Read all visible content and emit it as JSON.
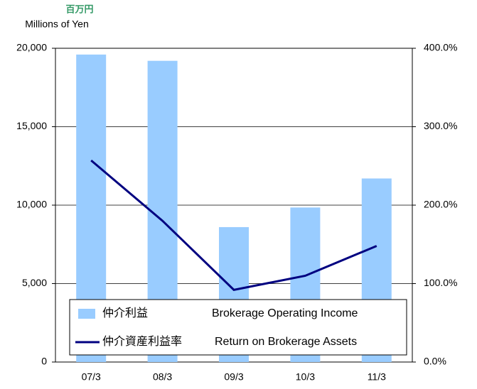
{
  "chart_data": {
    "type": "bar_line",
    "unit_label_ja": "百万円",
    "unit_label": "Millions of Yen",
    "categories": [
      "07/3",
      "08/3",
      "09/3",
      "10/3",
      "11/3"
    ],
    "series": [
      {
        "name": "仲介利益",
        "name_en": "Brokerage Operating Income",
        "type": "bar",
        "color": "#99ccff",
        "values": [
          19600,
          19200,
          8600,
          9850,
          11700
        ]
      },
      {
        "name": "仲介資産利益率",
        "name_en": "Return on Brokerage Assets",
        "type": "line",
        "axis": "y2",
        "color": "#000080",
        "values": [
          257,
          180,
          92,
          110,
          148
        ]
      }
    ],
    "ylim": [
      0,
      20000
    ],
    "yticks": [
      0,
      {
        "value": 5000,
        "label": "5,000"
      },
      {
        "value": 10000,
        "label": "10,000"
      },
      {
        "value": 15000,
        "label": "15,000"
      },
      {
        "value": 20000,
        "label": "20,000"
      }
    ],
    "y2lim": [
      0,
      400
    ],
    "y2ticks": [
      {
        "value": 0,
        "label": "0.0%"
      },
      {
        "value": 100,
        "label": "100.0%"
      },
      {
        "value": 200,
        "label": "200.0%"
      },
      {
        "value": 300,
        "label": "300.0%"
      },
      {
        "value": 400,
        "label": "400.0%"
      }
    ],
    "grid": true
  }
}
